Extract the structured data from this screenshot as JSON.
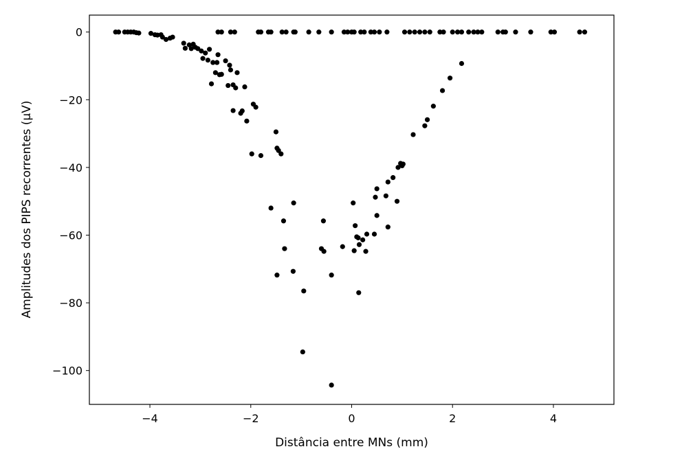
{
  "chart_data": {
    "type": "scatter",
    "title": "",
    "xlabel": "Distância entre MNs (mm)",
    "ylabel": "Amplitudes dos PIPS recorrentes (μV)",
    "xlim": [
      -5.2,
      5.2
    ],
    "ylim": [
      -110,
      5
    ],
    "xticks": [
      -4,
      -2,
      0,
      2,
      4
    ],
    "yticks": [
      0,
      -20,
      -40,
      -60,
      -80,
      -100
    ],
    "xtick_labels": [
      "−4",
      "−2",
      "0",
      "2",
      "4"
    ],
    "ytick_labels": [
      "0",
      "−20",
      "−40",
      "−60",
      "−80",
      "−100"
    ],
    "grid": false,
    "marker_color": "#000000",
    "series": [
      {
        "points": [
          [
            -4.68,
            0
          ],
          [
            -4.62,
            0
          ],
          [
            -4.5,
            0
          ],
          [
            -4.44,
            0
          ],
          [
            -4.38,
            0
          ],
          [
            -4.32,
            0
          ],
          [
            -4.27,
            -0.2
          ],
          [
            -4.22,
            -0.3
          ],
          [
            -3.98,
            -0.4
          ],
          [
            -3.9,
            -0.8
          ],
          [
            -3.85,
            -0.9
          ],
          [
            -3.78,
            -0.8
          ],
          [
            -3.75,
            -1.5
          ],
          [
            -3.68,
            -2.2
          ],
          [
            -3.6,
            -1.8
          ],
          [
            -3.55,
            -1.5
          ],
          [
            -3.33,
            -3.3
          ],
          [
            -3.3,
            -4.8
          ],
          [
            -3.22,
            -3.8
          ],
          [
            -3.18,
            -4.9
          ],
          [
            -3.14,
            -3.6
          ],
          [
            -3.1,
            -4.5
          ],
          [
            -3.05,
            -4.9
          ],
          [
            -2.98,
            -5.6
          ],
          [
            -2.95,
            -7.8
          ],
          [
            -2.9,
            -6.2
          ],
          [
            -2.85,
            -8.3
          ],
          [
            -2.82,
            -5.1
          ],
          [
            -2.78,
            -15.3
          ],
          [
            -2.75,
            -9.0
          ],
          [
            -2.7,
            -12.0
          ],
          [
            -2.67,
            -9.0
          ],
          [
            -2.65,
            -6.7
          ],
          [
            -2.62,
            -12.6
          ],
          [
            -2.58,
            -12.5
          ],
          [
            -2.5,
            -8.5
          ],
          [
            -2.45,
            -15.8
          ],
          [
            -2.42,
            -9.8
          ],
          [
            -2.4,
            -11.2
          ],
          [
            -2.35,
            -15.6
          ],
          [
            -2.3,
            -16.5
          ],
          [
            -2.27,
            -12.0
          ],
          [
            -2.2,
            -24.0
          ],
          [
            -2.17,
            -23.3
          ],
          [
            -2.12,
            -16.2
          ],
          [
            -2.08,
            -26.3
          ],
          [
            -2.35,
            -23.2
          ],
          [
            -1.95,
            -21.3
          ],
          [
            -1.9,
            -22.2
          ],
          [
            -1.98,
            -36.0
          ],
          [
            -1.8,
            -36.5
          ],
          [
            -1.5,
            -29.5
          ],
          [
            -1.48,
            -34.3
          ],
          [
            -1.45,
            -35.0
          ],
          [
            -1.4,
            -36.0
          ],
          [
            -1.6,
            -52.0
          ],
          [
            -1.35,
            -55.8
          ],
          [
            -1.33,
            -64.0
          ],
          [
            -1.15,
            -50.5
          ],
          [
            -1.48,
            -71.8
          ],
          [
            -1.16,
            -70.7
          ],
          [
            -0.95,
            -76.5
          ],
          [
            -0.97,
            -94.5
          ],
          [
            -0.6,
            -64.0
          ],
          [
            -0.55,
            -64.8
          ],
          [
            -0.56,
            -55.8
          ],
          [
            -0.4,
            -71.8
          ],
          [
            -0.4,
            -104.3
          ],
          [
            -0.18,
            -63.4
          ],
          [
            0.03,
            -50.5
          ],
          [
            0.05,
            -64.6
          ],
          [
            0.07,
            -57.2
          ],
          [
            0.1,
            -60.5
          ],
          [
            0.13,
            -60.8
          ],
          [
            0.15,
            -62.8
          ],
          [
            0.14,
            -77.0
          ],
          [
            0.22,
            -61.4
          ],
          [
            0.28,
            -64.8
          ],
          [
            0.3,
            -59.7
          ],
          [
            0.45,
            -59.7
          ],
          [
            0.47,
            -48.8
          ],
          [
            0.5,
            -54.2
          ],
          [
            0.5,
            -46.3
          ],
          [
            0.68,
            -48.4
          ],
          [
            0.72,
            -44.3
          ],
          [
            0.72,
            -57.6
          ],
          [
            0.82,
            -43.0
          ],
          [
            0.9,
            -50.0
          ],
          [
            0.92,
            -40.0
          ],
          [
            0.97,
            -38.8
          ],
          [
            1.0,
            -39.5
          ],
          [
            1.02,
            -39.0
          ],
          [
            1.22,
            -30.3
          ],
          [
            1.45,
            -27.7
          ],
          [
            1.5,
            -25.9
          ],
          [
            1.62,
            -21.9
          ],
          [
            1.8,
            -17.3
          ],
          [
            1.95,
            -13.6
          ],
          [
            2.18,
            -9.3
          ],
          [
            -2.65,
            0
          ],
          [
            -2.58,
            0
          ],
          [
            -2.4,
            0
          ],
          [
            -2.32,
            0
          ],
          [
            -1.85,
            0
          ],
          [
            -1.8,
            0
          ],
          [
            -1.65,
            0
          ],
          [
            -1.6,
            0
          ],
          [
            -1.38,
            0
          ],
          [
            -1.3,
            0
          ],
          [
            -1.15,
            0
          ],
          [
            -1.12,
            0
          ],
          [
            -0.85,
            0
          ],
          [
            -0.65,
            0
          ],
          [
            -0.4,
            0
          ],
          [
            -0.15,
            0
          ],
          [
            -0.08,
            0
          ],
          [
            0.0,
            0
          ],
          [
            0.05,
            0
          ],
          [
            0.18,
            0
          ],
          [
            0.25,
            0
          ],
          [
            0.38,
            0
          ],
          [
            0.45,
            0
          ],
          [
            0.55,
            0
          ],
          [
            0.7,
            0
          ],
          [
            1.05,
            0
          ],
          [
            1.15,
            0
          ],
          [
            1.25,
            0
          ],
          [
            1.35,
            0
          ],
          [
            1.45,
            0
          ],
          [
            1.55,
            0
          ],
          [
            1.75,
            0
          ],
          [
            1.82,
            0
          ],
          [
            2.0,
            0
          ],
          [
            2.1,
            0
          ],
          [
            2.18,
            0
          ],
          [
            2.32,
            0
          ],
          [
            2.42,
            0
          ],
          [
            2.5,
            0
          ],
          [
            2.58,
            0
          ],
          [
            2.9,
            0
          ],
          [
            3.0,
            0
          ],
          [
            3.05,
            0
          ],
          [
            3.25,
            0
          ],
          [
            3.55,
            0
          ],
          [
            3.95,
            0
          ],
          [
            4.02,
            0
          ],
          [
            4.52,
            0
          ],
          [
            4.62,
            0
          ]
        ]
      }
    ]
  }
}
